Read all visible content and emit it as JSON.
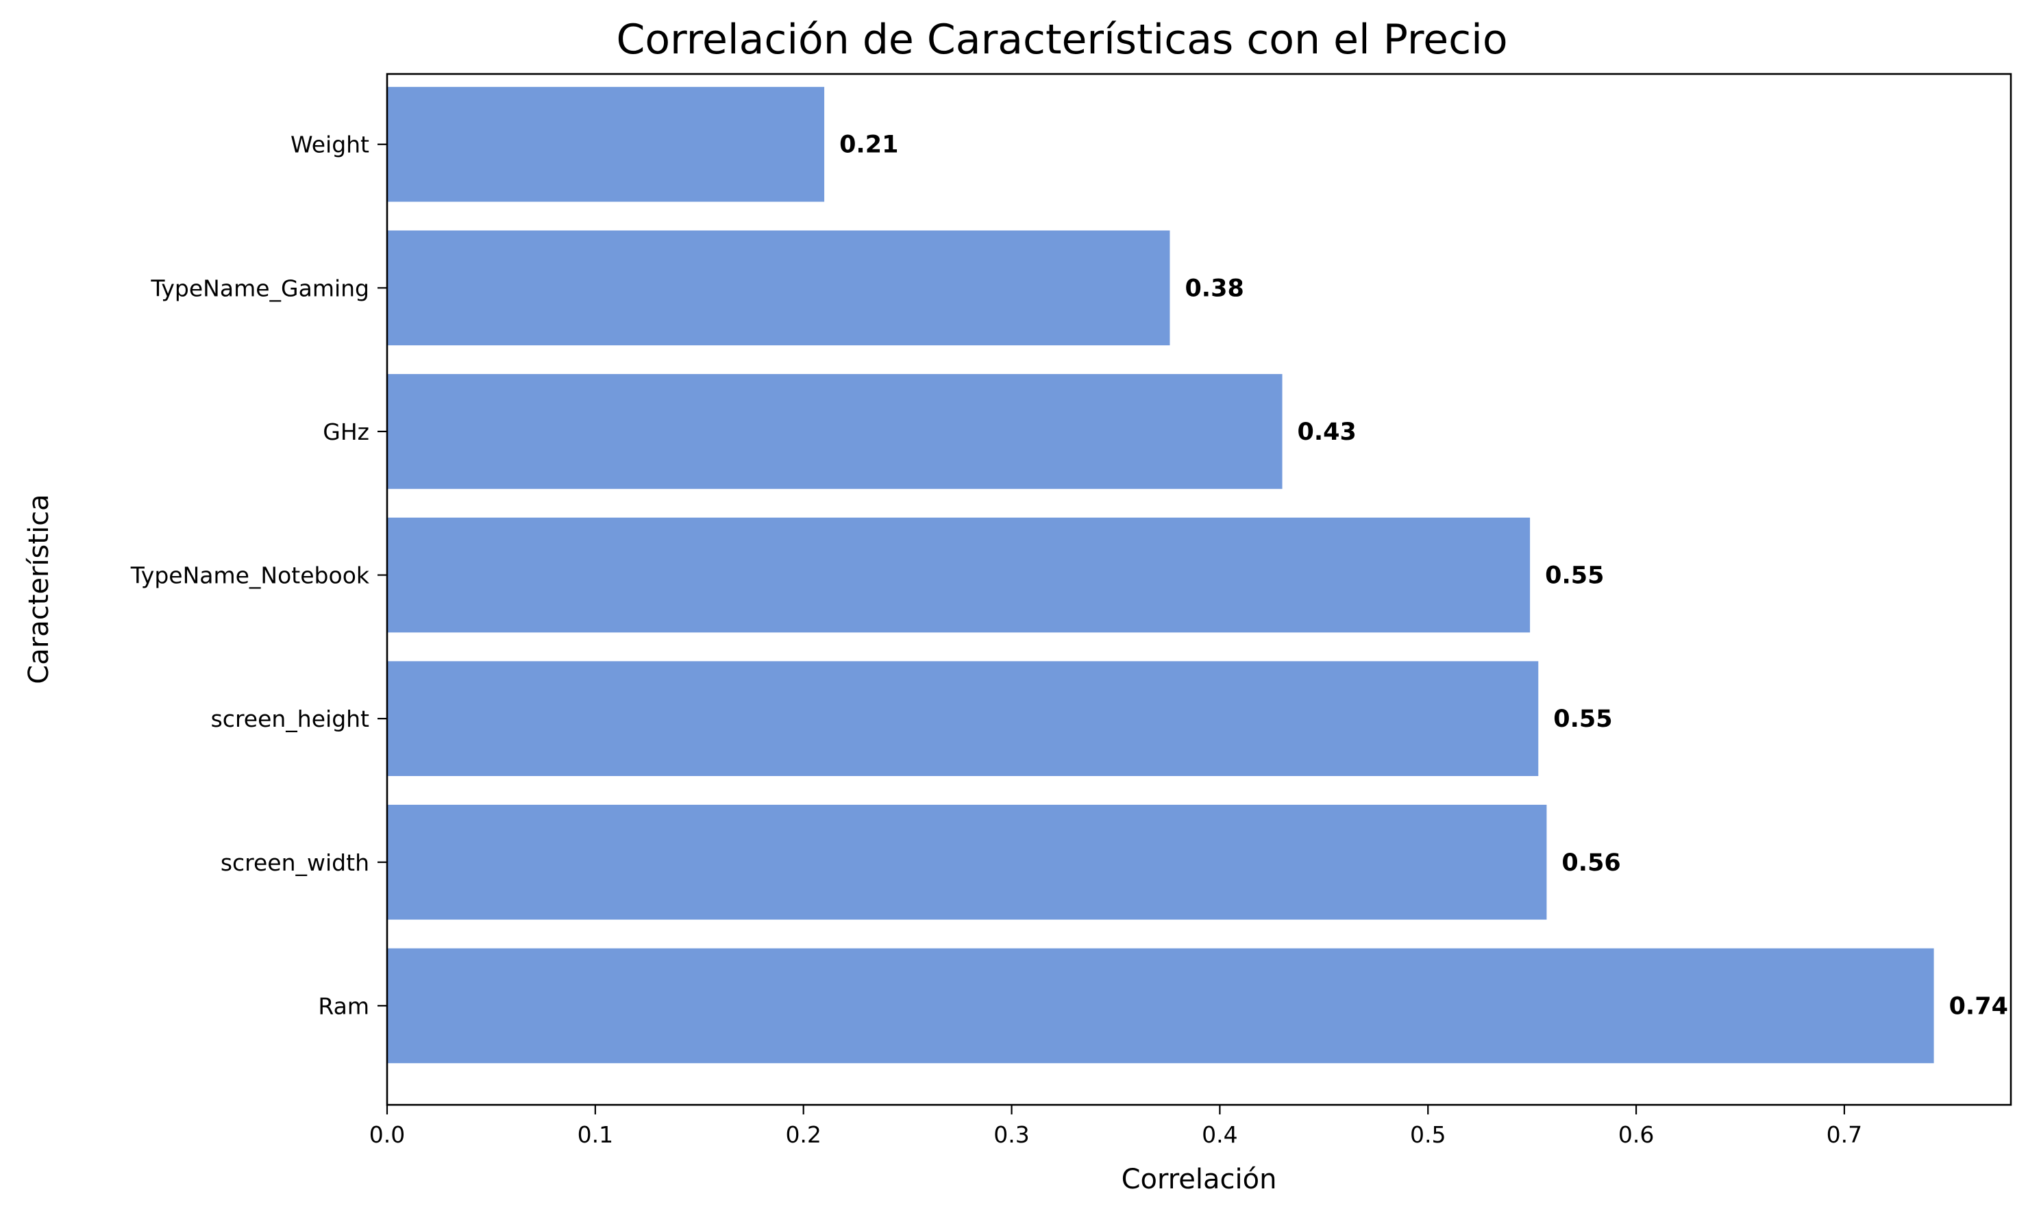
{
  "chart_data": {
    "type": "bar",
    "orientation": "horizontal",
    "title": "Correlación de Características con el Precio",
    "xlabel": "Correlación",
    "ylabel": "Característica",
    "categories": [
      "Weight",
      "TypeName_Gaming",
      "GHz",
      "TypeName_Notebook",
      "screen_height",
      "screen_width",
      "Ram"
    ],
    "values": [
      0.21,
      0.376,
      0.43,
      0.549,
      0.553,
      0.557,
      0.743
    ],
    "data_labels": [
      "0.21",
      "0.38",
      "0.43",
      "0.55",
      "0.55",
      "0.56",
      "0.74"
    ],
    "xlim": [
      0,
      0.78
    ],
    "xticks": [
      0.0,
      0.1,
      0.2,
      0.3,
      0.4,
      0.5,
      0.6,
      0.7
    ],
    "xtick_labels": [
      "0.0",
      "0.1",
      "0.2",
      "0.3",
      "0.4",
      "0.5",
      "0.6",
      "0.7"
    ],
    "grid": false,
    "legend": "none",
    "bar_color": "#739ADB"
  }
}
